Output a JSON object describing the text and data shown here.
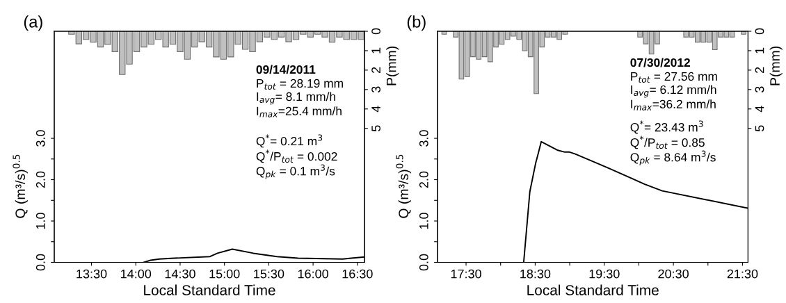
{
  "chart_data": [
    {
      "type": "line",
      "title": "(a)",
      "xlabel": "Local Standard Time",
      "ylabel": "Q (m³/s)$^{0.5}$",
      "y2label": "P(mm)",
      "xlim": [
        13.08,
        16.58
      ],
      "xticks": [
        {
          "value": 13.5,
          "label": "13:30"
        },
        {
          "value": 14.0,
          "label": "14:00"
        },
        {
          "value": 14.5,
          "label": "14:30"
        },
        {
          "value": 15.0,
          "label": "15:00"
        },
        {
          "value": 15.5,
          "label": "15:30"
        },
        {
          "value": 16.0,
          "label": "16:00"
        },
        {
          "value": 16.5,
          "label": "16:30"
        }
      ],
      "ylim": [
        0,
        5.59
      ],
      "yticks": [
        {
          "value": 0,
          "label": "0.0"
        },
        {
          "value": 0.5,
          "label": null
        },
        {
          "value": 1,
          "label": "1.0"
        },
        {
          "value": 1.5,
          "label": null
        },
        {
          "value": 2,
          "label": "2.0"
        },
        {
          "value": 2.5,
          "label": null
        },
        {
          "value": 3,
          "label": "3.0"
        }
      ],
      "y2lim": [
        11.9,
        0
      ],
      "y2ticks": [
        0,
        1,
        2,
        3,
        4,
        5
      ],
      "grid": false,
      "series": [
        {
          "type": "bar",
          "axis": "y2",
          "color": "#c0c0c0",
          "x": [
            13.275,
            13.357,
            13.438,
            13.52,
            13.602,
            13.683,
            13.765,
            13.847,
            13.928,
            14.01,
            14.092,
            14.173,
            14.255,
            14.337,
            14.418,
            14.5,
            14.582,
            14.663,
            14.745,
            14.827,
            14.908,
            14.99,
            15.072,
            15.153,
            15.235,
            15.317,
            15.398,
            15.48,
            15.562,
            15.643,
            15.725,
            15.807,
            15.888,
            15.97,
            16.052,
            16.133,
            16.215,
            16.297,
            16.378,
            16.46,
            16.542
          ],
          "values": [
            0.15,
            0.65,
            0.42,
            0.56,
            0.81,
            0.68,
            1.05,
            2.23,
            1.69,
            1.05,
            0.81,
            0.67,
            0.42,
            0.81,
            0.67,
            1.05,
            1.44,
            0.81,
            0.54,
            0.81,
            1.32,
            1.44,
            1.32,
            0.67,
            0.93,
            1.05,
            0.54,
            0.3,
            0.42,
            0.3,
            0.54,
            0.42,
            0.15,
            0.3,
            0.15,
            0.3,
            0.56,
            0.3,
            0.42,
            0.42,
            0.42
          ]
        },
        {
          "color": "#000000",
          "x": [
            14.09,
            14.167,
            14.264,
            14.432,
            14.837,
            14.921,
            15.089,
            15.327,
            15.592,
            15.83,
            16.334,
            16.58
          ],
          "values": [
            0,
            0.05,
            0.08,
            0.1,
            0.14,
            0.22,
            0.32,
            0.22,
            0.14,
            0.1,
            0.08,
            0.13
          ]
        }
      ],
      "annotations": [
        "09/14/2011",
        "P$_{tot}$ = 28.19 mm",
        "I$_{avg}$= 8.1 mm/h",
        "I$_{max}$=25.4 mm/h",
        "Q$^{*}$= 0.21 m$^{3}$",
        "Q$^{*}$/P$_{tot}$ = 0.002",
        "Q$_{pk}$ = 0.1 m$^{3}$/s"
      ]
    },
    {
      "type": "line",
      "title": "(b)",
      "xlabel": "Local Standard Time",
      "ylabel": "Q (m³/s)$^{0.5}$",
      "y2label": "P(mm)",
      "xlim": [
        17.087,
        21.58
      ],
      "xticks": [
        {
          "value": 17.5,
          "label": "17:30"
        },
        {
          "value": 18.0,
          "label": null
        },
        {
          "value": 18.5,
          "label": "18:30"
        },
        {
          "value": 19.0,
          "label": null
        },
        {
          "value": 19.5,
          "label": "19:30"
        },
        {
          "value": 20.0,
          "label": null
        },
        {
          "value": 20.5,
          "label": "20:30"
        },
        {
          "value": 21.0,
          "label": null
        },
        {
          "value": 21.5,
          "label": "21:30"
        }
      ],
      "ylim": [
        0,
        5.59
      ],
      "yticks": [
        {
          "value": 0,
          "label": "0.0"
        },
        {
          "value": 0.5,
          "label": null
        },
        {
          "value": 1,
          "label": "1.0"
        },
        {
          "value": 1.5,
          "label": null
        },
        {
          "value": 2,
          "label": "2.0"
        },
        {
          "value": 2.5,
          "label": null
        },
        {
          "value": 3,
          "label": "3.0"
        }
      ],
      "y2lim": [
        11.9,
        0
      ],
      "y2ticks": [
        0,
        1,
        2,
        3,
        4,
        5
      ],
      "grid": false,
      "series": [
        {
          "type": "bar",
          "axis": "y2",
          "color": "#c0c0c0",
          "x": [
            17.183,
            17.35,
            17.433,
            17.517,
            17.6,
            17.683,
            17.767,
            17.85,
            17.933,
            18.017,
            18.1,
            18.183,
            18.267,
            18.35,
            18.433,
            18.517,
            18.6,
            18.683,
            18.767,
            18.85,
            18.933,
            20.017,
            20.1,
            20.183,
            20.267,
            20.35,
            20.433,
            20.517,
            20.683,
            20.767,
            20.85,
            20.933,
            21.017,
            21.1,
            21.183,
            21.267,
            21.35,
            21.517
          ],
          "values": [
            0.15,
            0.3,
            2.46,
            2.33,
            1.31,
            1.44,
            1.31,
            1.57,
            0.81,
            0.67,
            0.42,
            0.25,
            0.42,
            1.0,
            1.31,
            3.21,
            0.81,
            0.3,
            0.3,
            0.42,
            0.15,
            0.3,
            0.65,
            1.17,
            0.65,
            null,
            null,
            null,
            0.3,
            0.3,
            0.56,
            0.56,
            0.56,
            0.95,
            0.3,
            0.3,
            0.3,
            0.15
          ]
        },
        {
          "color": "#000000",
          "x": [
            18.334,
            18.423,
            18.506,
            18.542,
            18.588,
            18.829,
            18.919,
            18.991,
            19.081,
            19.549,
            20.086,
            20.338,
            21.58
          ],
          "values": [
            0,
            1.71,
            2.39,
            2.62,
            2.92,
            2.71,
            2.67,
            2.67,
            2.62,
            2.29,
            1.89,
            1.73,
            1.31
          ]
        }
      ],
      "annotations": [
        "07/30/2012",
        "P$_{tot}$ = 27.56 mm",
        "I$_{avg}$= 6.12 mm/h",
        "I$_{max}$=36.2 mm/h",
        "Q$^{*}$= 23.43 m$^{3}$",
        "Q$^{*}$/P$_{tot}$ = 0.85",
        "Q$_{pk}$ = 8.64 m$^{3}$/s"
      ]
    }
  ]
}
